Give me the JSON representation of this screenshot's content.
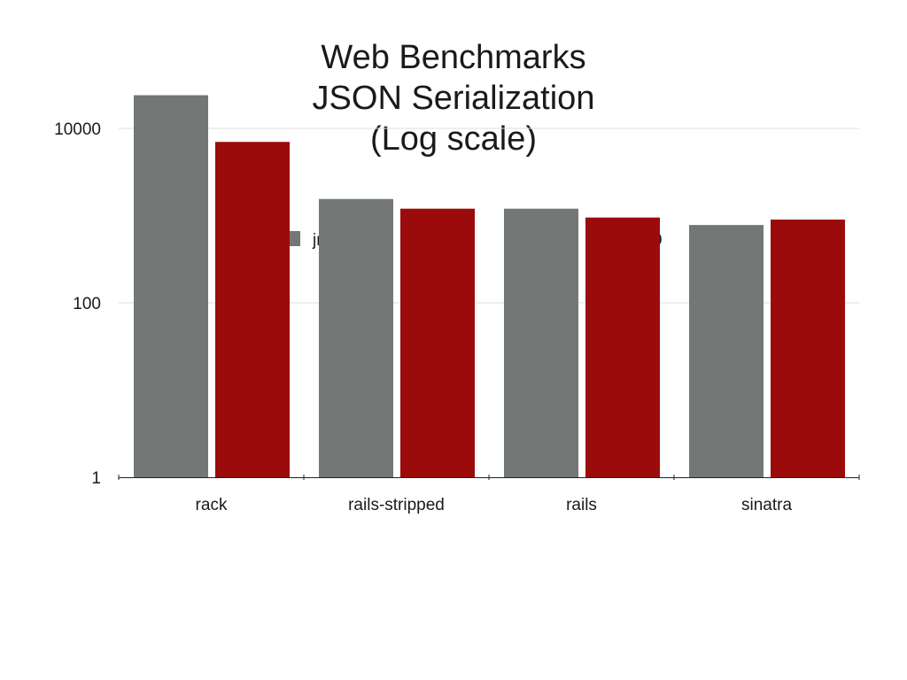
{
  "title_lines": [
    "Web Benchmarks",
    "JSON Serialization",
    "(Log scale)"
  ],
  "chart_data": {
    "type": "bar",
    "title": "Web Benchmarks JSON Serialization (Log scale)",
    "xlabel": "",
    "ylabel": "",
    "y_scale": "log",
    "ylim": [
      1,
      30000
    ],
    "y_ticks": [
      1,
      100,
      10000
    ],
    "y_tick_labels": [
      "1",
      "100",
      "10000"
    ],
    "grid": true,
    "legend_position": "top",
    "categories": [
      "rack",
      "rails-stripped",
      "rails",
      "sinatra"
    ],
    "series": [
      {
        "name": "jruby 1.7.8",
        "color": "#737775",
        "values": [
          24000,
          1550,
          1200,
          780
        ]
      },
      {
        "name": "ruby 2.0.0",
        "color": "#9b0b0b",
        "values": [
          7000,
          1200,
          950,
          900
        ]
      }
    ]
  }
}
